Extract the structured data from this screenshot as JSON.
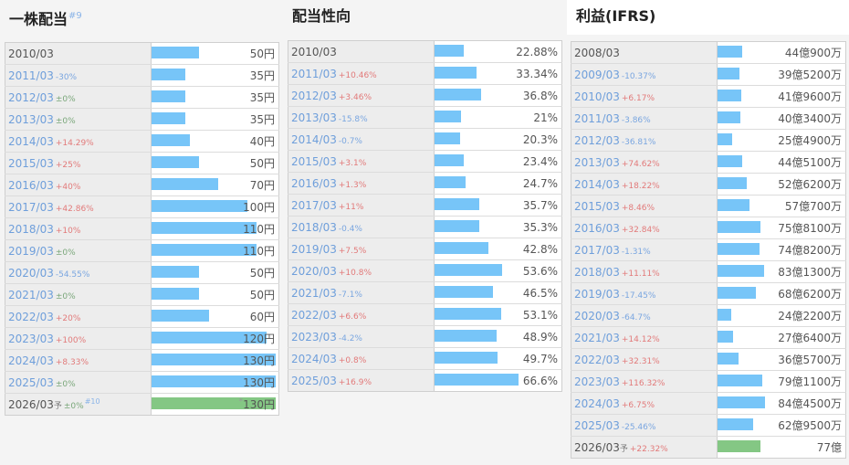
{
  "sections": {
    "dividend": {
      "title": "一株配当",
      "note": "#9",
      "unit": "円"
    },
    "payout": {
      "title": "配当性向",
      "unit": "%"
    },
    "profit": {
      "title": "利益(IFRS)"
    }
  },
  "chart_data": [
    {
      "type": "table",
      "title": "一株配当",
      "value_unit": "円",
      "bar_max": 130,
      "rows": [
        {
          "year": "2010/03",
          "change": "",
          "value": 50,
          "display": "50円"
        },
        {
          "year": "2011/03",
          "change": "-30%",
          "value": 35,
          "display": "35円"
        },
        {
          "year": "2012/03",
          "change": "±0%",
          "value": 35,
          "display": "35円"
        },
        {
          "year": "2013/03",
          "change": "±0%",
          "value": 35,
          "display": "35円"
        },
        {
          "year": "2014/03",
          "change": "+14.29%",
          "value": 40,
          "display": "40円"
        },
        {
          "year": "2015/03",
          "change": "+25%",
          "value": 50,
          "display": "50円"
        },
        {
          "year": "2016/03",
          "change": "+40%",
          "value": 70,
          "display": "70円"
        },
        {
          "year": "2017/03",
          "change": "+42.86%",
          "value": 100,
          "display": "100円"
        },
        {
          "year": "2018/03",
          "change": "+10%",
          "value": 110,
          "display": "110円"
        },
        {
          "year": "2019/03",
          "change": "±0%",
          "value": 110,
          "display": "110円"
        },
        {
          "year": "2020/03",
          "change": "-54.55%",
          "value": 50,
          "display": "50円"
        },
        {
          "year": "2021/03",
          "change": "±0%",
          "value": 50,
          "display": "50円"
        },
        {
          "year": "2022/03",
          "change": "+20%",
          "value": 60,
          "display": "60円"
        },
        {
          "year": "2023/03",
          "change": "+100%",
          "value": 120,
          "display": "120円"
        },
        {
          "year": "2024/03",
          "change": "+8.33%",
          "value": 130,
          "display": "130円"
        },
        {
          "year": "2025/03",
          "change": "±0%",
          "value": 130,
          "display": "130円"
        },
        {
          "year": "2026/03",
          "forecast": true,
          "forecast_mark": "予",
          "change": "±0%",
          "note": "#10",
          "value": 130,
          "display": "130円",
          "value_mark": "*"
        }
      ]
    },
    {
      "type": "table",
      "title": "配当性向",
      "value_unit": "%",
      "bar_max": 100,
      "rows": [
        {
          "year": "2010/03",
          "change": "",
          "value": 22.88,
          "display": "22.88%"
        },
        {
          "year": "2011/03",
          "change": "+10.46%",
          "value": 33.34,
          "display": "33.34%"
        },
        {
          "year": "2012/03",
          "change": "+3.46%",
          "value": 36.8,
          "display": "36.8%"
        },
        {
          "year": "2013/03",
          "change": "-15.8%",
          "value": 21,
          "display": "21%"
        },
        {
          "year": "2014/03",
          "change": "-0.7%",
          "value": 20.3,
          "display": "20.3%"
        },
        {
          "year": "2015/03",
          "change": "+3.1%",
          "value": 23.4,
          "display": "23.4%"
        },
        {
          "year": "2016/03",
          "change": "+1.3%",
          "value": 24.7,
          "display": "24.7%"
        },
        {
          "year": "2017/03",
          "change": "+11%",
          "value": 35.7,
          "display": "35.7%"
        },
        {
          "year": "2018/03",
          "change": "-0.4%",
          "value": 35.3,
          "display": "35.3%"
        },
        {
          "year": "2019/03",
          "change": "+7.5%",
          "value": 42.8,
          "display": "42.8%"
        },
        {
          "year": "2020/03",
          "change": "+10.8%",
          "value": 53.6,
          "display": "53.6%"
        },
        {
          "year": "2021/03",
          "change": "-7.1%",
          "value": 46.5,
          "display": "46.5%"
        },
        {
          "year": "2022/03",
          "change": "+6.6%",
          "value": 53.1,
          "display": "53.1%"
        },
        {
          "year": "2023/03",
          "change": "-4.2%",
          "value": 48.9,
          "display": "48.9%"
        },
        {
          "year": "2024/03",
          "change": "+0.8%",
          "value": 49.7,
          "display": "49.7%"
        },
        {
          "year": "2025/03",
          "change": "+16.9%",
          "value": 66.6,
          "display": "66.6%"
        }
      ]
    },
    {
      "type": "table",
      "title": "利益(IFRS)",
      "value_unit": "円",
      "bar_max": 1300,
      "rows": [
        {
          "year": "2008/03",
          "change": "",
          "value": 44.09,
          "display": "44億900万"
        },
        {
          "year": "2009/03",
          "change": "-10.37%",
          "value": 39.52,
          "display": "39億5200万"
        },
        {
          "year": "2010/03",
          "change": "+6.17%",
          "value": 41.96,
          "display": "41億9600万"
        },
        {
          "year": "2011/03",
          "change": "-3.86%",
          "value": 40.34,
          "display": "40億3400万"
        },
        {
          "year": "2012/03",
          "change": "-36.81%",
          "value": 25.49,
          "display": "25億4900万"
        },
        {
          "year": "2013/03",
          "change": "+74.62%",
          "value": 44.51,
          "display": "44億5100万"
        },
        {
          "year": "2014/03",
          "change": "+18.22%",
          "value": 52.62,
          "display": "52億6200万"
        },
        {
          "year": "2015/03",
          "change": "+8.46%",
          "value": 57.07,
          "display": "57億700万"
        },
        {
          "year": "2016/03",
          "change": "+32.84%",
          "value": 75.81,
          "display": "75億8100万"
        },
        {
          "year": "2017/03",
          "change": "-1.31%",
          "value": 74.82,
          "display": "74億8200万"
        },
        {
          "year": "2018/03",
          "change": "+11.11%",
          "value": 83.13,
          "display": "83億1300万"
        },
        {
          "year": "2019/03",
          "change": "-17.45%",
          "value": 68.62,
          "display": "68億6200万"
        },
        {
          "year": "2020/03",
          "change": "-64.7%",
          "value": 24.22,
          "display": "24億2200万"
        },
        {
          "year": "2021/03",
          "change": "+14.12%",
          "value": 27.64,
          "display": "27億6400万"
        },
        {
          "year": "2022/03",
          "change": "+32.31%",
          "value": 36.57,
          "display": "36億5700万"
        },
        {
          "year": "2023/03",
          "change": "+116.32%",
          "value": 79.11,
          "display": "79億1100万"
        },
        {
          "year": "2024/03",
          "change": "+6.75%",
          "value": 84.45,
          "display": "84億4500万"
        },
        {
          "year": "2025/03",
          "change": "-25.46%",
          "value": 62.95,
          "display": "62億9500万"
        },
        {
          "year": "2026/03",
          "forecast": true,
          "forecast_mark": "予",
          "change": "+22.32%",
          "value": 77,
          "display": "77億"
        }
      ]
    }
  ],
  "colors": {
    "bar": "#77c5f8",
    "bar_forecast": "#84c784",
    "change_positive": "#e27a7a",
    "change_negative": "#7aa6e0",
    "change_zero": "#7aa77a",
    "year_highlight": "#6f9fdb"
  }
}
